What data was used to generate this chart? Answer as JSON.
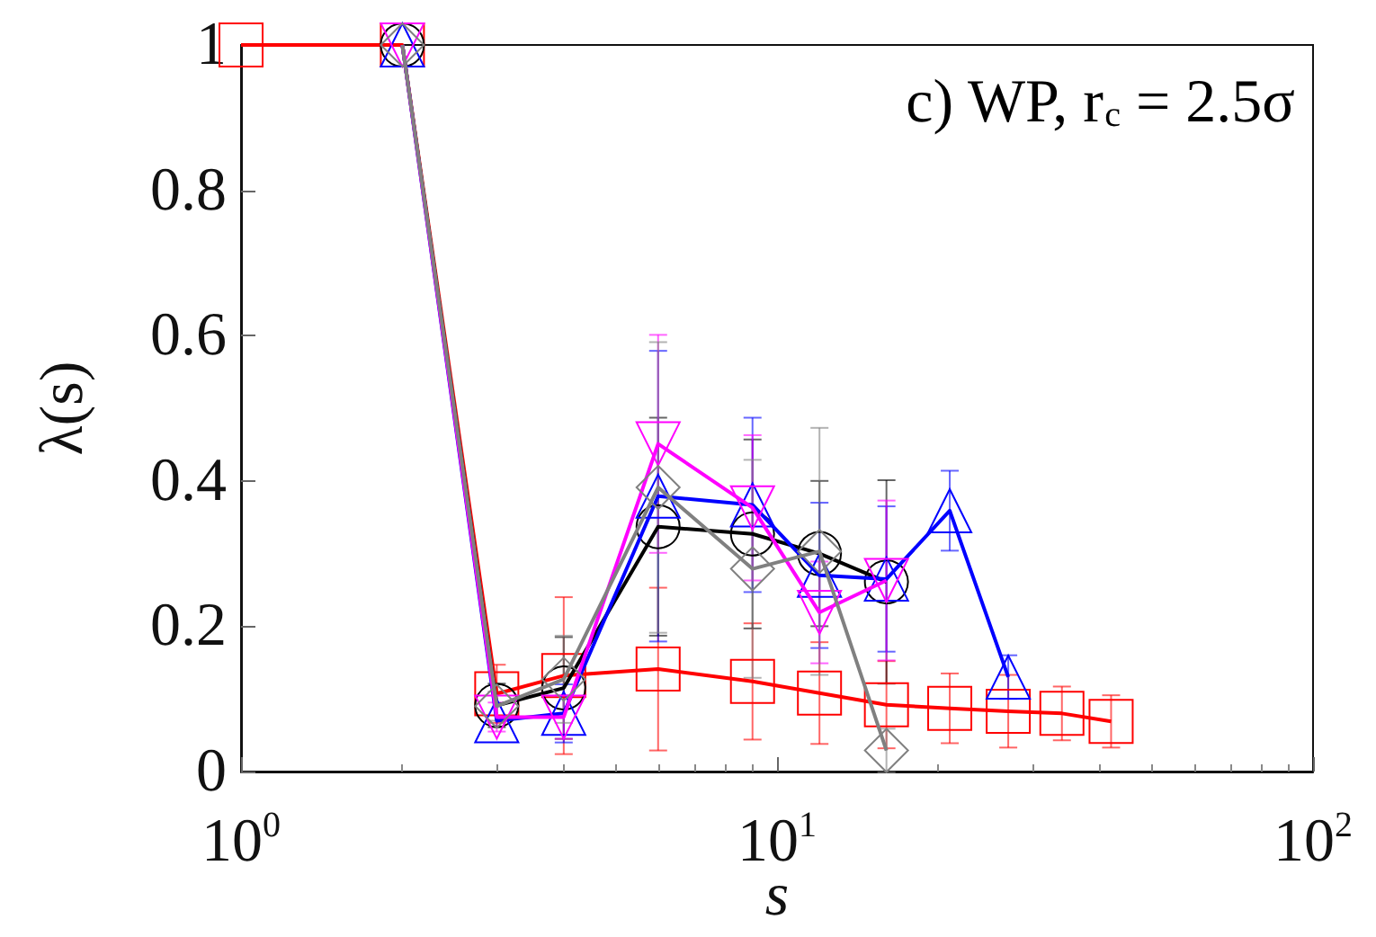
{
  "chart_data": {
    "type": "line",
    "xlabel": "s",
    "ylabel": "λ(s)",
    "annotations": [
      "c) WP, r$_{c}$ = 2.5σ"
    ],
    "log": "x",
    "xlim": [
      1,
      100
    ],
    "xticks": [
      {
        "value": 1,
        "label": "10$^{0}$"
      },
      {
        "value": 10,
        "label": "10$^{1}$"
      },
      {
        "value": 100,
        "label": "10$^{2}$"
      }
    ],
    "ylim": [
      0,
      1
    ],
    "yticks": [
      0,
      0.2,
      0.4,
      0.6,
      0.8,
      1
    ],
    "grid": false,
    "line_style": "solid",
    "series": [
      {
        "color": "#ff0000",
        "marker": "square",
        "x": [
          1,
          2,
          3,
          4,
          6,
          9,
          12,
          16,
          21,
          27,
          34,
          42
        ],
        "values": [
          1,
          1,
          0.107,
          0.132,
          0.141,
          0.124,
          0.108,
          0.092,
          0.087,
          0.083,
          0.08,
          0.069
        ],
        "errors": [
          null,
          null,
          0.04,
          0.108,
          0.112,
          0.08,
          0.07,
          0.06,
          0.048,
          0.05,
          0.037,
          0.036
        ]
      },
      {
        "color": "#000000",
        "marker": "circle",
        "x": [
          2,
          3,
          4,
          6,
          9,
          12,
          16
        ],
        "values": [
          1,
          0.091,
          0.115,
          0.337,
          0.327,
          0.3,
          0.261
        ],
        "errors": [
          null,
          0.03,
          0.07,
          0.15,
          0.13,
          0.1,
          0.14
        ]
      },
      {
        "color": "#0000ff",
        "marker": "triangle",
        "x": [
          2,
          3,
          4,
          6,
          9,
          12,
          16,
          21,
          27
        ],
        "values": [
          1,
          0.07,
          0.08,
          0.379,
          0.367,
          0.27,
          0.265,
          0.359,
          0.13
        ],
        "errors": [
          null,
          null,
          0.04,
          0.2,
          0.12,
          0.1,
          0.1,
          0.055,
          0.03
        ]
      },
      {
        "color": "#ff00ff",
        "marker": "triangle-down",
        "x": [
          2,
          3,
          4,
          6,
          9,
          12,
          16
        ],
        "values": [
          1,
          0.075,
          0.075,
          0.451,
          0.363,
          0.219,
          0.263
        ],
        "errors": [
          null,
          0.02,
          0.03,
          0.15,
          0.1,
          0.07,
          0.11
        ]
      },
      {
        "color": "#808080",
        "marker": "diamond",
        "x": [
          2,
          3,
          4,
          6,
          9,
          12,
          16
        ],
        "values": [
          1,
          0.09,
          0.127,
          0.391,
          0.279,
          0.303,
          0.029
        ],
        "errors": [
          null,
          0.02,
          0.06,
          0.2,
          0.15,
          0.17,
          0.03
        ]
      }
    ]
  }
}
